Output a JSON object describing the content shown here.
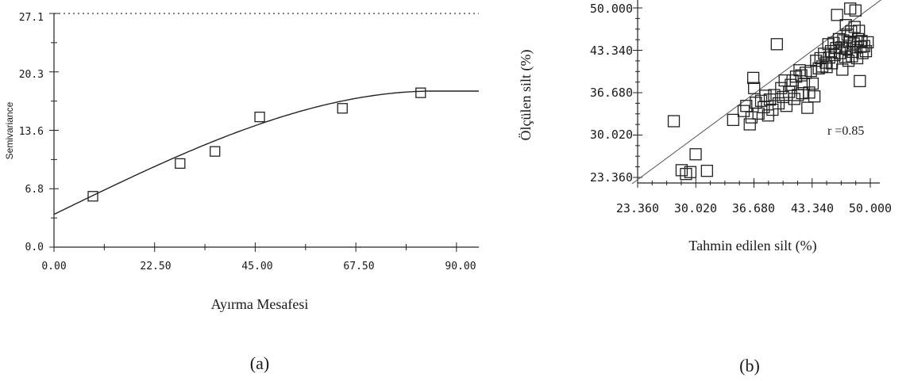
{
  "chart_data": [
    {
      "type": "scatter",
      "panel_label": "(a)",
      "title": "",
      "xlabel": "Ayırma Mesafesi",
      "ylabel": "Semivariance",
      "xlim": [
        0,
        95
      ],
      "ylim": [
        0,
        27.1
      ],
      "xticks": [
        "0.00",
        "22.50",
        "45.00",
        "67.50",
        "90.00"
      ],
      "yticks": [
        "0.0",
        "6.8",
        "13.6",
        "20.3",
        "27.1"
      ],
      "reference_line_y": 27.1,
      "series": [
        {
          "kind": "points",
          "x": [
            8.7,
            28.2,
            36.0,
            46.0,
            64.5,
            82.0
          ],
          "y": [
            5.9,
            9.7,
            11.1,
            15.1,
            16.1,
            17.9
          ]
        },
        {
          "kind": "fitted-model",
          "model": "spherical",
          "nugget": 3.8,
          "sill": 18.1,
          "range": 85,
          "x_end": 95
        }
      ]
    },
    {
      "type": "scatter",
      "panel_label": "(b)",
      "title": "",
      "xlabel": "Tahmin edilen silt (%)",
      "ylabel": "Ölçülen silt (%)",
      "xlim": [
        23.36,
        50.0
      ],
      "ylim": [
        23.36,
        50.0
      ],
      "xticks": [
        "23.360",
        "30.020",
        "36.680",
        "43.340",
        "50.000"
      ],
      "yticks": [
        "23.360",
        "30.020",
        "36.680",
        "43.340",
        "50.000"
      ],
      "annotation": "r =0.85",
      "reference_line": "1:1",
      "points": [
        [
          28.4,
          24.5
        ],
        [
          28.9,
          23.9
        ],
        [
          29.4,
          24.2
        ],
        [
          31.3,
          24.4
        ],
        [
          30.0,
          27.0
        ],
        [
          27.5,
          32.2
        ],
        [
          34.3,
          32.4
        ],
        [
          35.5,
          33.8
        ],
        [
          35.8,
          34.6
        ],
        [
          36.2,
          31.7
        ],
        [
          36.4,
          32.8
        ],
        [
          36.6,
          39.0
        ],
        [
          36.7,
          37.4
        ],
        [
          36.9,
          35.1
        ],
        [
          37.2,
          33.4
        ],
        [
          37.5,
          35.4
        ],
        [
          37.8,
          34.4
        ],
        [
          38.0,
          36.2
        ],
        [
          38.3,
          33.1
        ],
        [
          38.5,
          35.6
        ],
        [
          38.8,
          34.0
        ],
        [
          39.0,
          36.3
        ],
        [
          39.3,
          44.3
        ],
        [
          39.5,
          35.0
        ],
        [
          39.8,
          37.4
        ],
        [
          40.0,
          36.0
        ],
        [
          40.2,
          38.6
        ],
        [
          40.4,
          34.6
        ],
        [
          40.7,
          36.8
        ],
        [
          40.9,
          37.9
        ],
        [
          41.1,
          38.6
        ],
        [
          41.3,
          35.7
        ],
        [
          41.5,
          39.2
        ],
        [
          41.7,
          36.3
        ],
        [
          41.9,
          40.2
        ],
        [
          42.1,
          39.4
        ],
        [
          42.2,
          36.6
        ],
        [
          42.4,
          38.0
        ],
        [
          42.6,
          39.8
        ],
        [
          42.8,
          34.3
        ],
        [
          43.0,
          36.7
        ],
        [
          43.2,
          40.1
        ],
        [
          43.4,
          38.1
        ],
        [
          43.6,
          36.1
        ],
        [
          43.8,
          41.7
        ],
        [
          44.1,
          40.5
        ],
        [
          44.3,
          42.1
        ],
        [
          44.5,
          40.8
        ],
        [
          44.7,
          42.8
        ],
        [
          44.9,
          41.4
        ],
        [
          45.0,
          40.7
        ],
        [
          45.2,
          44.3
        ],
        [
          45.3,
          42.2
        ],
        [
          45.5,
          43.2
        ],
        [
          45.6,
          41.3
        ],
        [
          45.8,
          44.5
        ],
        [
          45.9,
          42.6
        ],
        [
          46.1,
          43.7
        ],
        [
          46.2,
          48.9
        ],
        [
          46.4,
          45.1
        ],
        [
          46.5,
          42.9
        ],
        [
          46.7,
          43.8
        ],
        [
          46.8,
          40.3
        ],
        [
          46.9,
          44.9
        ],
        [
          47.1,
          42.3
        ],
        [
          47.2,
          47.3
        ],
        [
          47.3,
          43.6
        ],
        [
          47.4,
          45.8
        ],
        [
          47.5,
          41.7
        ],
        [
          47.6,
          44.7
        ],
        [
          47.7,
          49.9
        ],
        [
          47.8,
          46.3
        ],
        [
          47.9,
          42.4
        ],
        [
          48.0,
          43.1
        ],
        [
          48.1,
          44.4
        ],
        [
          48.2,
          47.0
        ],
        [
          48.3,
          49.6
        ],
        [
          48.4,
          43.8
        ],
        [
          48.5,
          42.1
        ],
        [
          48.6,
          45.1
        ],
        [
          48.7,
          46.4
        ],
        [
          48.8,
          38.5
        ],
        [
          48.9,
          43.9
        ],
        [
          49.0,
          44.8
        ],
        [
          49.1,
          42.9
        ],
        [
          49.3,
          44.0
        ],
        [
          49.5,
          43.2
        ],
        [
          49.7,
          44.6
        ]
      ]
    }
  ]
}
